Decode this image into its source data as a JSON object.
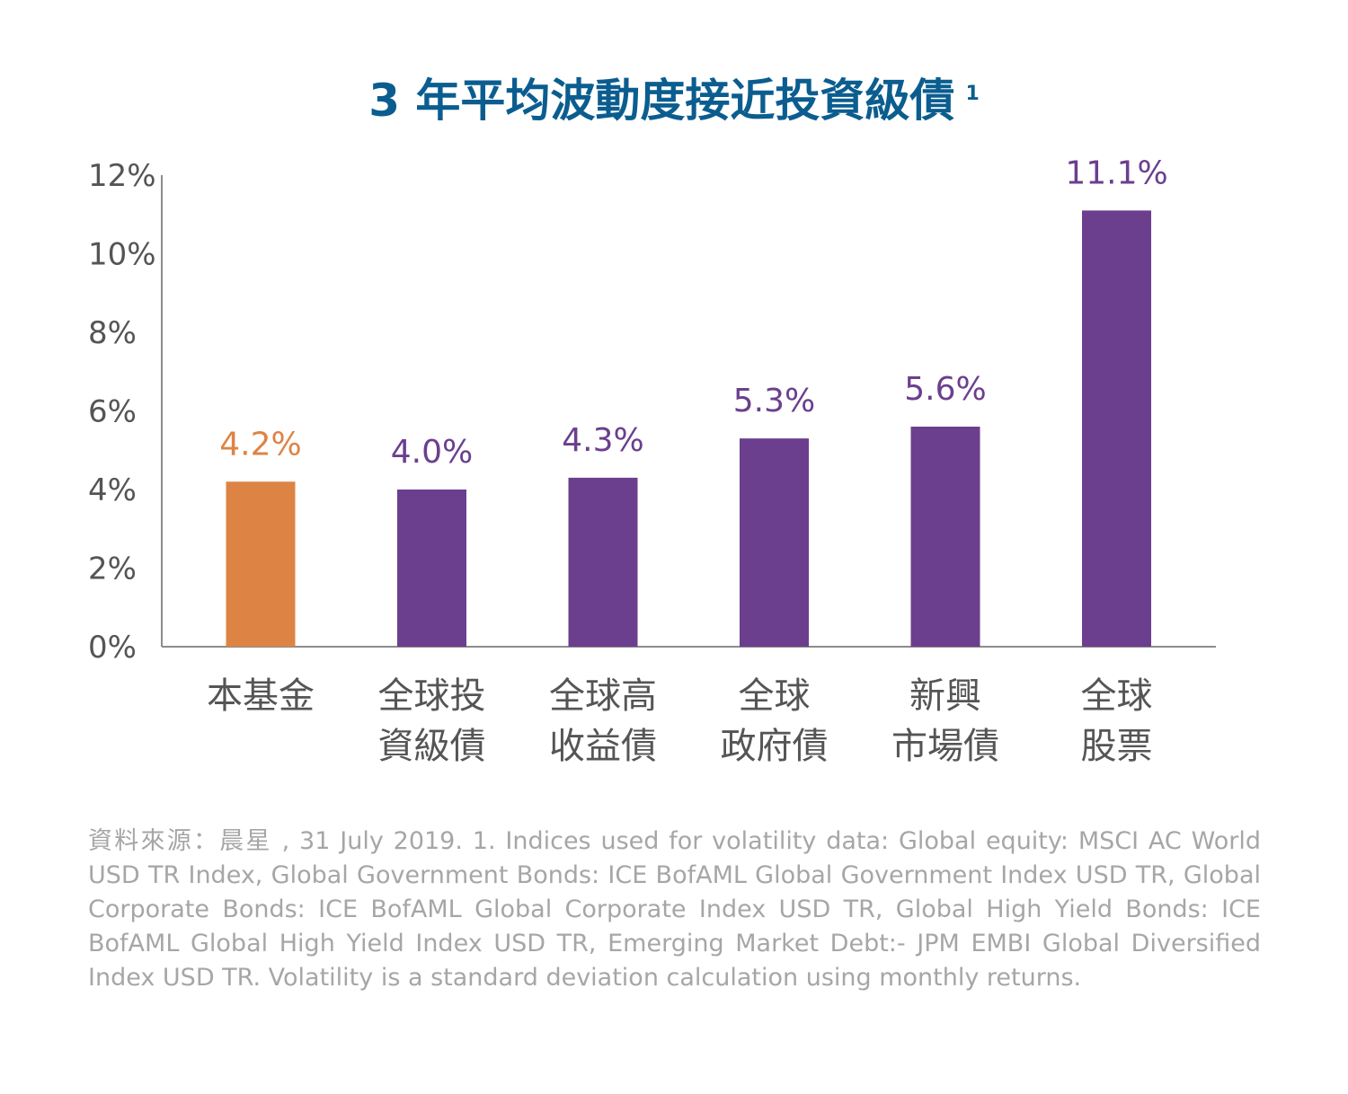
{
  "chart_data": {
    "type": "bar",
    "title": "3 年平均波動度接近投資級債",
    "title_sup": "1",
    "categories": [
      [
        "本基金"
      ],
      [
        "全球投",
        "資級債"
      ],
      [
        "全球高",
        "收益債"
      ],
      [
        "全球",
        "政府債"
      ],
      [
        "新興",
        "市場債"
      ],
      [
        "全球",
        "股票"
      ]
    ],
    "values": [
      4.2,
      4.0,
      4.3,
      5.3,
      5.6,
      11.1
    ],
    "value_labels": [
      "4.2%",
      "4.0%",
      "4.3%",
      "5.3%",
      "5.6%",
      "11.1%"
    ],
    "highlight_index": 0,
    "colors": {
      "highlight": "#dd8445",
      "default": "#6b3f8e",
      "axis": "#8c8c8c",
      "tick_text": "#555555",
      "category_text": "#555555"
    },
    "ylim": [
      0,
      12
    ],
    "yticks": [
      0,
      2,
      4,
      6,
      8,
      10,
      12
    ],
    "ytick_labels": [
      "0%",
      "2%",
      "4%",
      "6%",
      "8%",
      "10%",
      "12%"
    ],
    "xlabel": "",
    "ylabel": "",
    "grid": false
  },
  "source_note": "資料來源：晨星 , 31 July 2019. 1. Indices used for volatility data: Global equity: MSCI AC World USD TR Index, Global Government Bonds: ICE BofAML Global Government Index USD TR, Global Corporate Bonds: ICE BofAML Global Corporate Index USD TR, Global High Yield Bonds: ICE BofAML Global High Yield Index USD TR, Emerging Market Debt:- JPM EMBI Global Diversified Index USD TR. Volatility is a standard deviation calculation using monthly returns."
}
